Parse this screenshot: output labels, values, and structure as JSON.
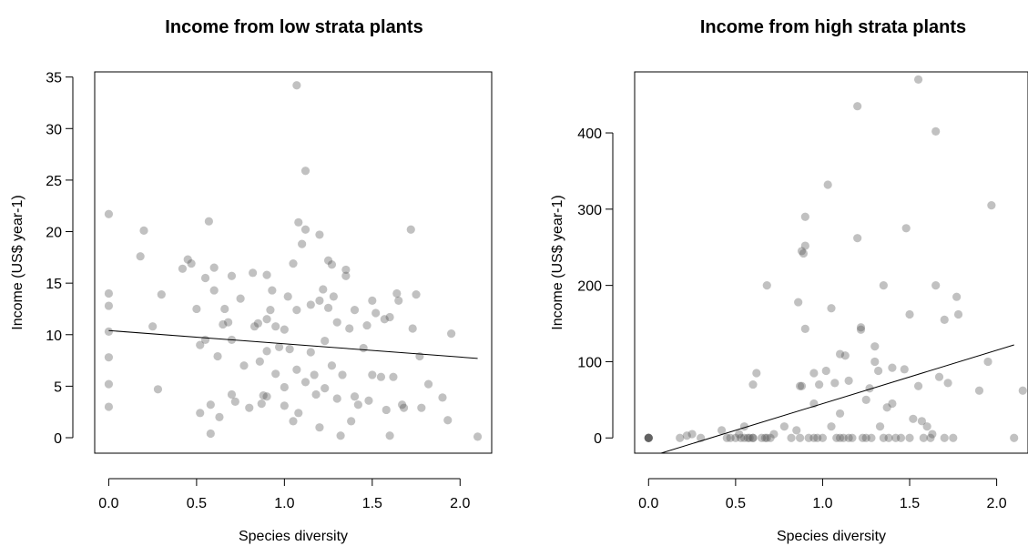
{
  "colors": {
    "point": "#4d4d4d",
    "point_opacity": 0.35,
    "line": "#000000"
  },
  "chart_data": [
    {
      "type": "scatter",
      "title": "Income from low strata plants",
      "xlabel": "Species diversity",
      "ylabel": "Income (US$ year-1)",
      "xlim": [
        -0.08,
        2.18
      ],
      "ylim": [
        -1.5,
        35.5
      ],
      "xticks": [
        0.0,
        0.5,
        1.0,
        1.5,
        2.0
      ],
      "xtick_labels": [
        "0.0",
        "0.5",
        "1.0",
        "1.5",
        "2.0"
      ],
      "yticks": [
        0,
        5,
        10,
        15,
        20,
        25,
        30,
        35
      ],
      "ytick_labels": [
        "0",
        "5",
        "10",
        "15",
        "20",
        "25",
        "30",
        "35"
      ],
      "regression": {
        "x": [
          0.0,
          2.1
        ],
        "y": [
          10.4,
          7.7
        ]
      },
      "points": [
        [
          0.0,
          21.7
        ],
        [
          0.0,
          14.0
        ],
        [
          0.0,
          12.8
        ],
        [
          0.0,
          10.3
        ],
        [
          0.0,
          7.8
        ],
        [
          0.0,
          5.2
        ],
        [
          0.0,
          3.0
        ],
        [
          0.18,
          17.6
        ],
        [
          0.2,
          20.1
        ],
        [
          0.25,
          10.8
        ],
        [
          0.28,
          4.7
        ],
        [
          0.3,
          13.9
        ],
        [
          0.42,
          16.4
        ],
        [
          0.45,
          17.3
        ],
        [
          0.47,
          16.9
        ],
        [
          0.5,
          12.5
        ],
        [
          0.52,
          9.0
        ],
        [
          0.52,
          2.4
        ],
        [
          0.55,
          15.5
        ],
        [
          0.55,
          9.5
        ],
        [
          0.57,
          21.0
        ],
        [
          0.58,
          3.2
        ],
        [
          0.58,
          0.4
        ],
        [
          0.6,
          16.5
        ],
        [
          0.6,
          14.3
        ],
        [
          0.62,
          7.9
        ],
        [
          0.63,
          2.0
        ],
        [
          0.65,
          11.0
        ],
        [
          0.66,
          12.5
        ],
        [
          0.68,
          11.2
        ],
        [
          0.7,
          15.7
        ],
        [
          0.7,
          9.5
        ],
        [
          0.7,
          4.2
        ],
        [
          0.72,
          3.5
        ],
        [
          0.75,
          13.5
        ],
        [
          0.77,
          7.0
        ],
        [
          0.8,
          2.9
        ],
        [
          0.82,
          16.0
        ],
        [
          0.83,
          10.8
        ],
        [
          0.85,
          11.1
        ],
        [
          0.86,
          7.4
        ],
        [
          0.87,
          3.3
        ],
        [
          0.88,
          4.1
        ],
        [
          0.9,
          15.8
        ],
        [
          0.9,
          11.5
        ],
        [
          0.9,
          8.4
        ],
        [
          0.9,
          4.0
        ],
        [
          0.92,
          12.4
        ],
        [
          0.93,
          14.3
        ],
        [
          0.95,
          10.8
        ],
        [
          0.95,
          6.2
        ],
        [
          0.97,
          8.8
        ],
        [
          1.0,
          10.5
        ],
        [
          1.0,
          4.9
        ],
        [
          1.0,
          3.1
        ],
        [
          1.02,
          13.7
        ],
        [
          1.03,
          8.6
        ],
        [
          1.05,
          16.9
        ],
        [
          1.05,
          1.6
        ],
        [
          1.07,
          34.2
        ],
        [
          1.07,
          12.4
        ],
        [
          1.07,
          6.6
        ],
        [
          1.08,
          20.9
        ],
        [
          1.08,
          2.4
        ],
        [
          1.1,
          18.8
        ],
        [
          1.12,
          25.9
        ],
        [
          1.12,
          20.2
        ],
        [
          1.12,
          5.4
        ],
        [
          1.15,
          12.9
        ],
        [
          1.15,
          8.3
        ],
        [
          1.17,
          6.1
        ],
        [
          1.18,
          4.2
        ],
        [
          1.2,
          19.7
        ],
        [
          1.2,
          13.3
        ],
        [
          1.2,
          1.0
        ],
        [
          1.22,
          14.4
        ],
        [
          1.23,
          9.4
        ],
        [
          1.23,
          4.8
        ],
        [
          1.25,
          17.2
        ],
        [
          1.25,
          12.6
        ],
        [
          1.27,
          16.8
        ],
        [
          1.27,
          7.0
        ],
        [
          1.28,
          13.7
        ],
        [
          1.3,
          11.2
        ],
        [
          1.3,
          3.8
        ],
        [
          1.32,
          0.2
        ],
        [
          1.33,
          6.1
        ],
        [
          1.35,
          16.3
        ],
        [
          1.35,
          15.7
        ],
        [
          1.37,
          10.6
        ],
        [
          1.38,
          1.6
        ],
        [
          1.4,
          12.4
        ],
        [
          1.4,
          4.0
        ],
        [
          1.42,
          3.2
        ],
        [
          1.45,
          8.7
        ],
        [
          1.47,
          10.9
        ],
        [
          1.48,
          3.6
        ],
        [
          1.5,
          13.3
        ],
        [
          1.5,
          6.1
        ],
        [
          1.52,
          12.1
        ],
        [
          1.55,
          5.9
        ],
        [
          1.57,
          11.5
        ],
        [
          1.58,
          2.7
        ],
        [
          1.6,
          11.7
        ],
        [
          1.6,
          0.2
        ],
        [
          1.62,
          5.9
        ],
        [
          1.64,
          14.0
        ],
        [
          1.65,
          13.3
        ],
        [
          1.67,
          3.2
        ],
        [
          1.68,
          2.9
        ],
        [
          1.72,
          20.2
        ],
        [
          1.73,
          10.6
        ],
        [
          1.75,
          13.9
        ],
        [
          1.77,
          7.9
        ],
        [
          1.78,
          2.9
        ],
        [
          1.82,
          5.2
        ],
        [
          1.9,
          3.9
        ],
        [
          1.93,
          1.7
        ],
        [
          1.95,
          10.1
        ],
        [
          2.1,
          0.1
        ]
      ]
    },
    {
      "type": "scatter",
      "title": "Income from high strata plants",
      "xlabel": "Species diversity",
      "ylabel": "Income (US$ year-1)",
      "xlim": [
        -0.08,
        2.18
      ],
      "ylim": [
        -20,
        480
      ],
      "xticks": [
        0.0,
        0.5,
        1.0,
        1.5,
        2.0
      ],
      "xtick_labels": [
        "0.0",
        "0.5",
        "1.0",
        "1.5",
        "2.0"
      ],
      "yticks": [
        0,
        100,
        200,
        300,
        400
      ],
      "ytick_labels": [
        "0",
        "100",
        "200",
        "300",
        "400"
      ],
      "regression": {
        "x": [
          0.0,
          2.1
        ],
        "y": [
          -25,
          122
        ]
      },
      "points": [
        [
          0.0,
          0
        ],
        [
          0.0,
          0
        ],
        [
          0.0,
          0
        ],
        [
          0.0,
          0
        ],
        [
          0.0,
          0
        ],
        [
          0.18,
          0
        ],
        [
          0.22,
          3
        ],
        [
          0.25,
          5
        ],
        [
          0.3,
          0
        ],
        [
          0.42,
          10
        ],
        [
          0.45,
          0
        ],
        [
          0.47,
          0
        ],
        [
          0.5,
          0
        ],
        [
          0.52,
          5
        ],
        [
          0.53,
          0
        ],
        [
          0.55,
          15
        ],
        [
          0.55,
          0
        ],
        [
          0.57,
          0
        ],
        [
          0.58,
          0
        ],
        [
          0.6,
          0
        ],
        [
          0.6,
          0
        ],
        [
          0.6,
          70
        ],
        [
          0.62,
          85
        ],
        [
          0.65,
          0
        ],
        [
          0.67,
          0
        ],
        [
          0.68,
          200
        ],
        [
          0.68,
          0
        ],
        [
          0.7,
          0
        ],
        [
          0.72,
          5
        ],
        [
          0.78,
          15
        ],
        [
          0.82,
          0
        ],
        [
          0.85,
          10
        ],
        [
          0.86,
          178
        ],
        [
          0.87,
          0
        ],
        [
          0.87,
          68
        ],
        [
          0.88,
          68
        ],
        [
          0.88,
          245
        ],
        [
          0.89,
          242
        ],
        [
          0.9,
          290
        ],
        [
          0.9,
          252
        ],
        [
          0.9,
          143
        ],
        [
          0.92,
          0
        ],
        [
          0.95,
          0
        ],
        [
          0.95,
          85
        ],
        [
          0.95,
          45
        ],
        [
          0.97,
          0
        ],
        [
          0.98,
          70
        ],
        [
          1.0,
          0
        ],
        [
          1.02,
          88
        ],
        [
          1.03,
          332
        ],
        [
          1.05,
          170
        ],
        [
          1.05,
          15
        ],
        [
          1.07,
          72
        ],
        [
          1.08,
          0
        ],
        [
          1.1,
          110
        ],
        [
          1.1,
          0
        ],
        [
          1.1,
          32
        ],
        [
          1.12,
          0
        ],
        [
          1.13,
          108
        ],
        [
          1.15,
          75
        ],
        [
          1.15,
          0
        ],
        [
          1.17,
          0
        ],
        [
          1.2,
          435
        ],
        [
          1.2,
          262
        ],
        [
          1.22,
          145
        ],
        [
          1.22,
          142
        ],
        [
          1.23,
          0
        ],
        [
          1.25,
          0
        ],
        [
          1.25,
          50
        ],
        [
          1.27,
          65
        ],
        [
          1.28,
          0
        ],
        [
          1.3,
          120
        ],
        [
          1.3,
          100
        ],
        [
          1.32,
          88
        ],
        [
          1.33,
          15
        ],
        [
          1.35,
          200
        ],
        [
          1.35,
          0
        ],
        [
          1.37,
          40
        ],
        [
          1.38,
          0
        ],
        [
          1.4,
          92
        ],
        [
          1.4,
          45
        ],
        [
          1.42,
          0
        ],
        [
          1.45,
          0
        ],
        [
          1.47,
          90
        ],
        [
          1.48,
          275
        ],
        [
          1.5,
          162
        ],
        [
          1.5,
          0
        ],
        [
          1.52,
          25
        ],
        [
          1.55,
          470
        ],
        [
          1.55,
          68
        ],
        [
          1.57,
          22
        ],
        [
          1.58,
          0
        ],
        [
          1.6,
          15
        ],
        [
          1.62,
          0
        ],
        [
          1.63,
          5
        ],
        [
          1.65,
          402
        ],
        [
          1.65,
          200
        ],
        [
          1.67,
          80
        ],
        [
          1.7,
          155
        ],
        [
          1.7,
          0
        ],
        [
          1.72,
          72
        ],
        [
          1.75,
          0
        ],
        [
          1.77,
          185
        ],
        [
          1.78,
          162
        ],
        [
          1.9,
          62
        ],
        [
          1.95,
          100
        ],
        [
          1.97,
          305
        ],
        [
          2.1,
          0
        ],
        [
          2.15,
          62
        ]
      ]
    }
  ]
}
